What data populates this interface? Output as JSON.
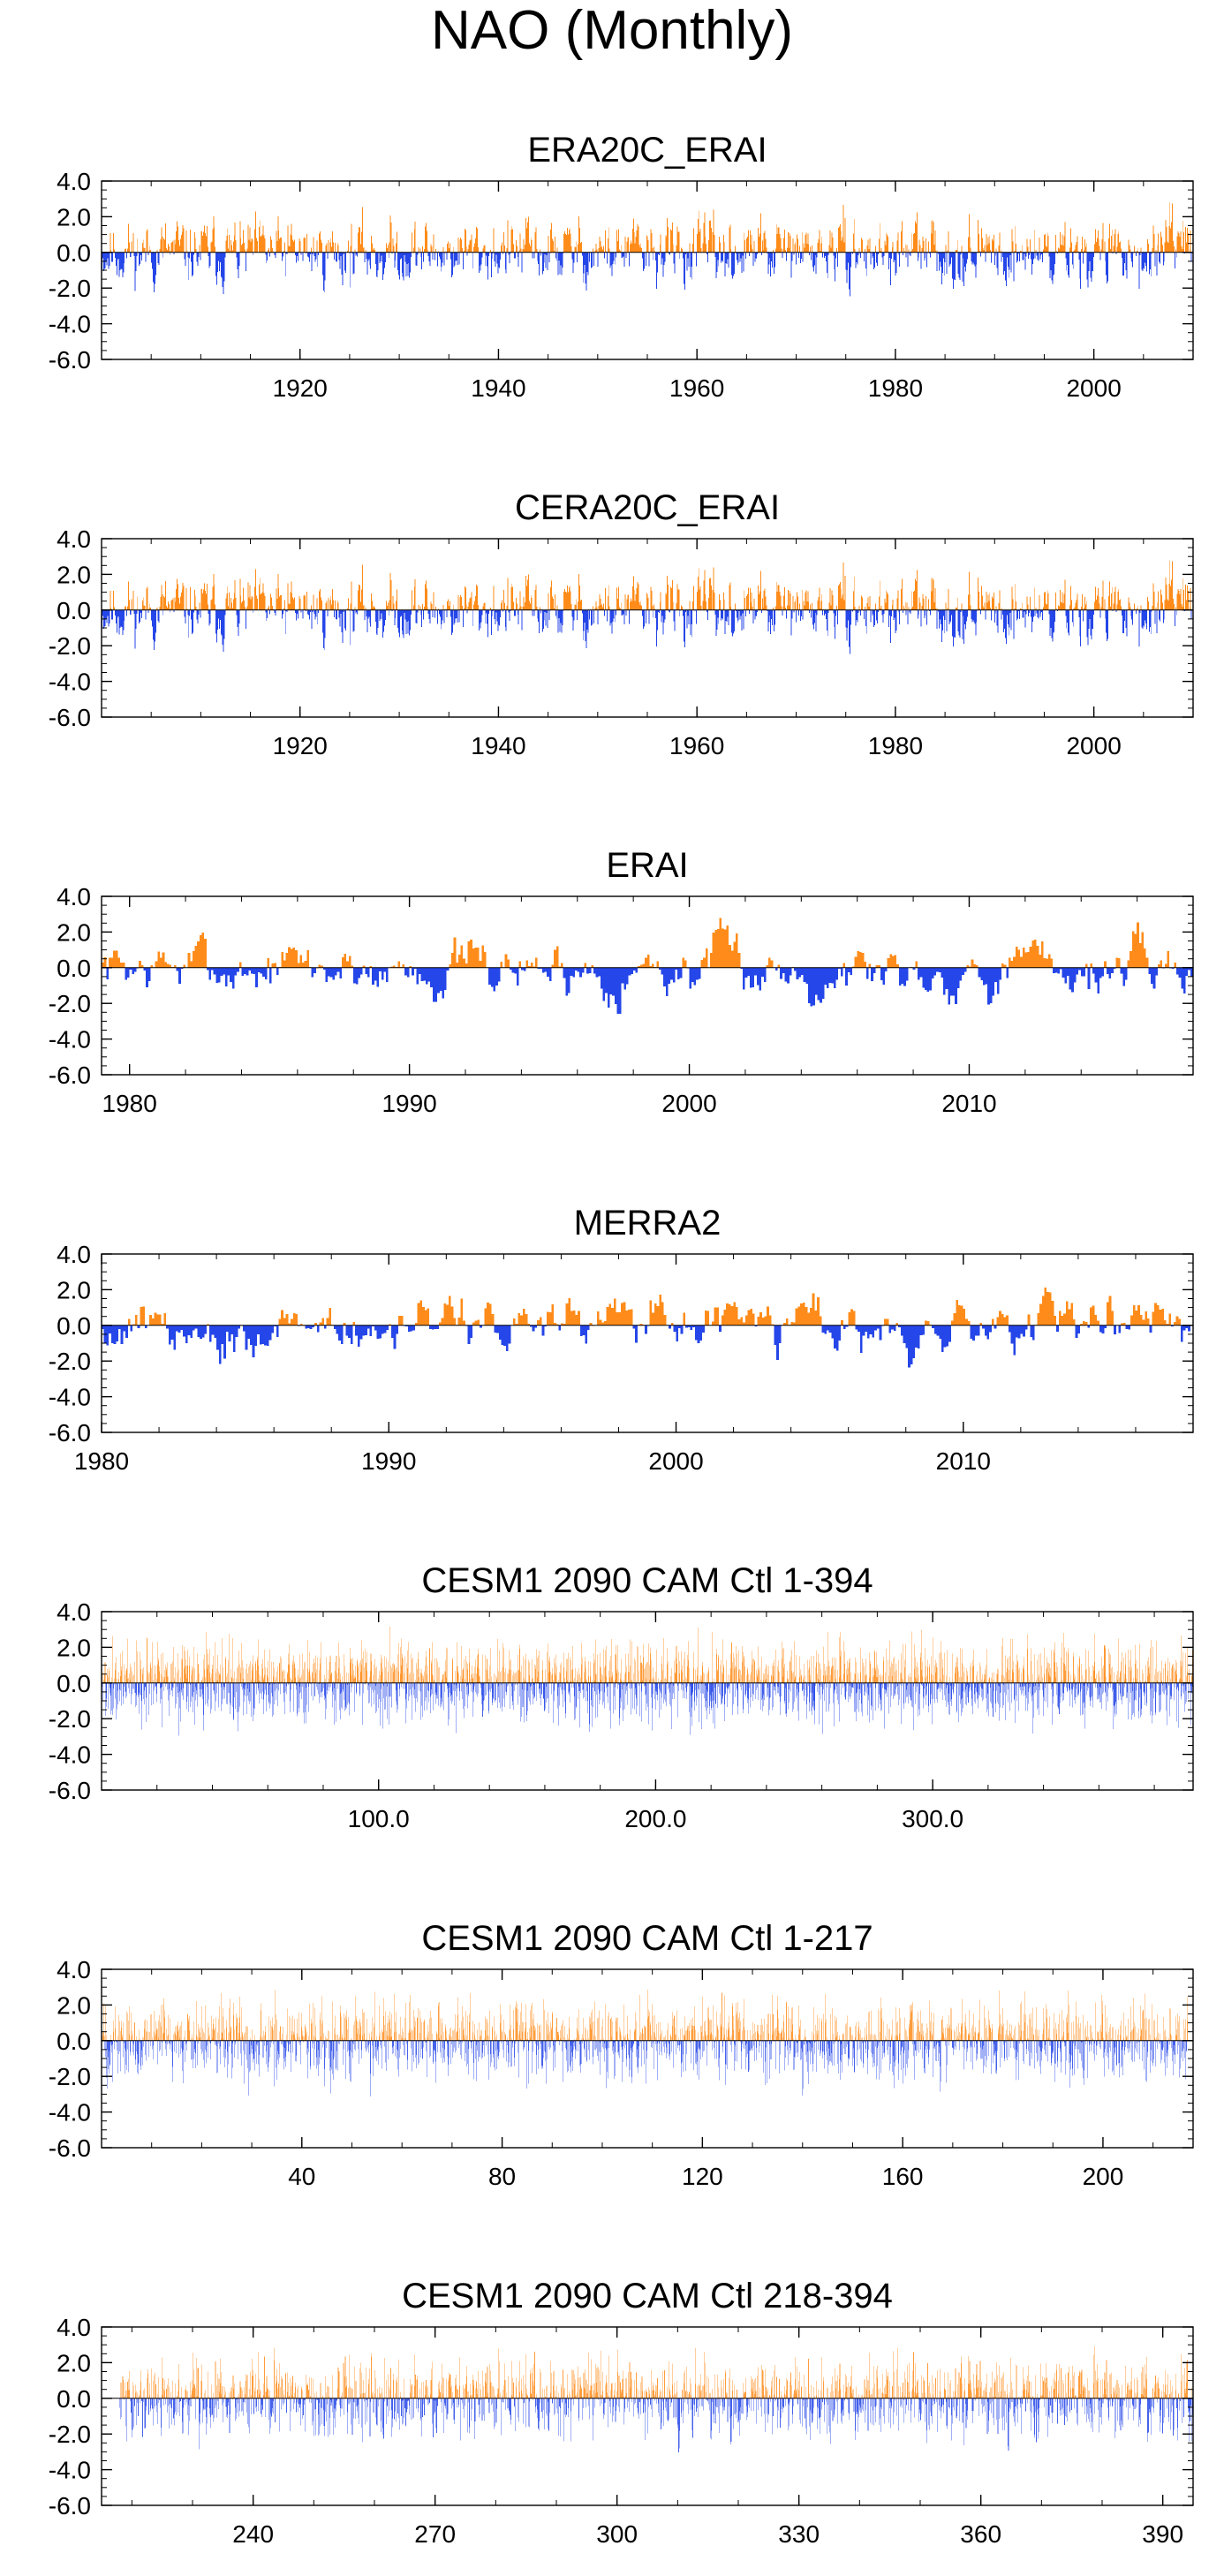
{
  "title": "NAO (Monthly)",
  "colors": {
    "positive": "#ff8c1a",
    "negative": "#2546e8",
    "axis": "#000000",
    "faint": "#bcbcbc"
  },
  "chart_data": [
    {
      "type": "bar",
      "title": "ERA20C_ERAI",
      "xlabel": "",
      "ylabel": "",
      "xlim": [
        1900,
        2010
      ],
      "ylim": [
        -6.0,
        4.0
      ],
      "xticks": [
        {
          "v": 1920,
          "label": "1920"
        },
        {
          "v": 1940,
          "label": "1940"
        },
        {
          "v": 1960,
          "label": "1960"
        },
        {
          "v": 1980,
          "label": "1980"
        },
        {
          "v": 2000,
          "label": "2000"
        }
      ],
      "yticks": [
        {
          "v": 4.0,
          "label": "4.0"
        },
        {
          "v": 2.0,
          "label": "2.0"
        },
        {
          "v": 0.0,
          "label": "0.0"
        },
        {
          "v": -2.0,
          "label": "-2.0"
        },
        {
          "v": -4.0,
          "label": "-4.0"
        },
        {
          "v": -6.0,
          "label": "-6.0"
        }
      ],
      "x_start": 1900.0,
      "x_step": 0.0833,
      "n": 1320,
      "style": "dense",
      "seed": 11,
      "y_extent": [
        -4.5,
        3.0
      ]
    },
    {
      "type": "bar",
      "title": "CERA20C_ERAI",
      "xlabel": "",
      "ylabel": "",
      "xlim": [
        1900,
        2010
      ],
      "ylim": [
        -6.0,
        4.0
      ],
      "xticks": [
        {
          "v": 1920,
          "label": "1920"
        },
        {
          "v": 1940,
          "label": "1940"
        },
        {
          "v": 1960,
          "label": "1960"
        },
        {
          "v": 1980,
          "label": "1980"
        },
        {
          "v": 2000,
          "label": "2000"
        }
      ],
      "yticks": [
        {
          "v": 4.0,
          "label": "4.0"
        },
        {
          "v": 2.0,
          "label": "2.0"
        },
        {
          "v": 0.0,
          "label": "0.0"
        },
        {
          "v": -2.0,
          "label": "-2.0"
        },
        {
          "v": -4.0,
          "label": "-4.0"
        },
        {
          "v": -6.0,
          "label": "-6.0"
        }
      ],
      "x_start": 1900.0,
      "x_step": 0.0833,
      "n": 1320,
      "style": "dense",
      "seed": 11,
      "y_extent": [
        -4.5,
        3.0
      ]
    },
    {
      "type": "bar",
      "title": "ERAI",
      "xlabel": "",
      "ylabel": "",
      "xlim": [
        1979,
        2018
      ],
      "ylim": [
        -6.0,
        4.0
      ],
      "xticks": [
        {
          "v": 1980,
          "label": "1980"
        },
        {
          "v": 1990,
          "label": "1990"
        },
        {
          "v": 2000,
          "label": "2000"
        },
        {
          "v": 2010,
          "label": "2010"
        }
      ],
      "yticks": [
        {
          "v": 4.0,
          "label": "4.0"
        },
        {
          "v": 2.0,
          "label": "2.0"
        },
        {
          "v": 0.0,
          "label": "0.0"
        },
        {
          "v": -2.0,
          "label": "-2.0"
        },
        {
          "v": -4.0,
          "label": "-4.0"
        },
        {
          "v": -6.0,
          "label": "-6.0"
        }
      ],
      "x_start": 1979.0,
      "x_step": 0.0833,
      "n": 468,
      "style": "smooth",
      "seed": 7,
      "y_extent": [
        -3.6,
        2.8
      ]
    },
    {
      "type": "bar",
      "title": "MERRA2",
      "xlabel": "",
      "ylabel": "",
      "xlim": [
        1980,
        2018
      ],
      "ylim": [
        -6.0,
        4.0
      ],
      "xticks": [
        {
          "v": 1980,
          "label": "1980"
        },
        {
          "v": 1990,
          "label": "1990"
        },
        {
          "v": 2000,
          "label": "2000"
        },
        {
          "v": 2010,
          "label": "2010"
        }
      ],
      "yticks": [
        {
          "v": 4.0,
          "label": "4.0"
        },
        {
          "v": 2.0,
          "label": "2.0"
        },
        {
          "v": 0.0,
          "label": "0.0"
        },
        {
          "v": -2.0,
          "label": "-2.0"
        },
        {
          "v": -4.0,
          "label": "-4.0"
        },
        {
          "v": -6.0,
          "label": "-6.0"
        }
      ],
      "x_start": 1980.0,
      "x_step": 0.0833,
      "n": 456,
      "style": "smooth",
      "seed": 9,
      "y_extent": [
        -3.6,
        2.8
      ]
    },
    {
      "type": "bar",
      "title": "CESM1 2090 CAM Ctl 1-394",
      "xlabel": "",
      "ylabel": "",
      "xlim": [
        0,
        394
      ],
      "ylim": [
        -6.0,
        4.0
      ],
      "xticks": [
        {
          "v": 100,
          "label": "100.0"
        },
        {
          "v": 200,
          "label": "200.0"
        },
        {
          "v": 300,
          "label": "300.0"
        }
      ],
      "yticks": [
        {
          "v": 4.0,
          "label": "4.0"
        },
        {
          "v": 2.0,
          "label": "2.0"
        },
        {
          "v": 0.0,
          "label": "0.0"
        },
        {
          "v": -2.0,
          "label": "-2.0"
        },
        {
          "v": -4.0,
          "label": "-4.0"
        },
        {
          "v": -6.0,
          "label": "-6.0"
        }
      ],
      "x_start": 0.0,
      "x_step": 0.0833,
      "n": 4728,
      "style": "spiky",
      "seed": 21,
      "y_extent": [
        -5.0,
        3.3
      ]
    },
    {
      "type": "bar",
      "title": "CESM1 2090 CAM Ctl 1-217",
      "xlabel": "",
      "ylabel": "",
      "xlim": [
        0,
        218
      ],
      "ylim": [
        -6.0,
        4.0
      ],
      "xticks": [
        {
          "v": 40,
          "label": "40"
        },
        {
          "v": 80,
          "label": "80"
        },
        {
          "v": 120,
          "label": "120"
        },
        {
          "v": 160,
          "label": "160"
        },
        {
          "v": 200,
          "label": "200"
        }
      ],
      "yticks": [
        {
          "v": 4.0,
          "label": "4.0"
        },
        {
          "v": 2.0,
          "label": "2.0"
        },
        {
          "v": 0.0,
          "label": "0.0"
        },
        {
          "v": -2.0,
          "label": "-2.0"
        },
        {
          "v": -4.0,
          "label": "-4.0"
        },
        {
          "v": -6.0,
          "label": "-6.0"
        }
      ],
      "x_start": 0.0,
      "x_step": 0.0833,
      "n": 2604,
      "style": "spiky",
      "seed": 33,
      "y_extent": [
        -5.0,
        3.3
      ]
    },
    {
      "type": "bar",
      "title": "CESM1 2090 CAM Ctl 218-394",
      "xlabel": "",
      "ylabel": "",
      "xlim": [
        215,
        395
      ],
      "ylim": [
        -6.0,
        4.0
      ],
      "xticks": [
        {
          "v": 240,
          "label": "240"
        },
        {
          "v": 270,
          "label": "270"
        },
        {
          "v": 300,
          "label": "300"
        },
        {
          "v": 330,
          "label": "330"
        },
        {
          "v": 360,
          "label": "360"
        },
        {
          "v": 390,
          "label": "390"
        }
      ],
      "yticks": [
        {
          "v": 4.0,
          "label": "4.0"
        },
        {
          "v": 2.0,
          "label": "2.0"
        },
        {
          "v": 0.0,
          "label": "0.0"
        },
        {
          "v": -2.0,
          "label": "-2.0"
        },
        {
          "v": -4.0,
          "label": "-4.0"
        },
        {
          "v": -6.0,
          "label": "-6.0"
        }
      ],
      "x_start": 218.0,
      "x_step": 0.0833,
      "n": 2124,
      "style": "spiky",
      "seed": 45,
      "y_extent": [
        -5.0,
        3.3
      ]
    }
  ]
}
